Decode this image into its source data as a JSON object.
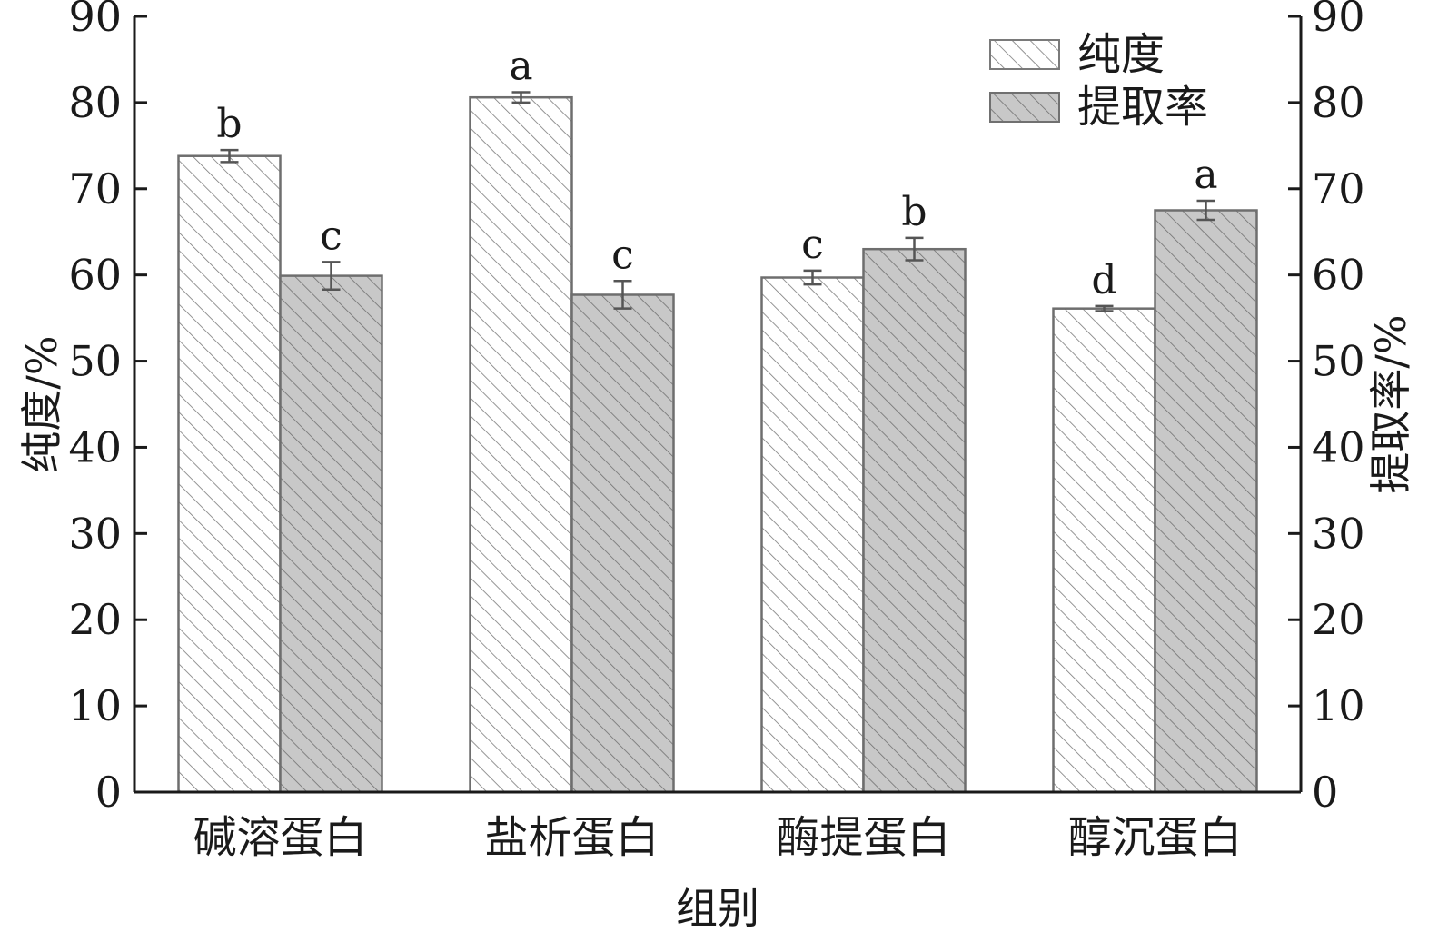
{
  "chart_data": {
    "type": "bar",
    "title": "",
    "xlabel": "组别",
    "ylabel": "纯度/%",
    "y2label": "提取率/%",
    "ylim": [
      0,
      90
    ],
    "y2lim": [
      0,
      90
    ],
    "yticks": [
      0,
      10,
      20,
      30,
      40,
      50,
      60,
      70,
      80,
      90
    ],
    "categories": [
      "碱溶蛋白",
      "盐析蛋白",
      "酶提蛋白",
      "醇沉蛋白"
    ],
    "series": [
      {
        "name": "纯度",
        "axis": "left",
        "values": [
          73.8,
          80.6,
          59.7,
          56.1
        ],
        "errors": [
          0.7,
          0.6,
          0.8,
          0.3
        ],
        "labels": [
          "b",
          "a",
          "c",
          "d"
        ],
        "fill": "#ffffff",
        "hatch": "#7a7a7a"
      },
      {
        "name": "提取率",
        "axis": "right",
        "values": [
          59.9,
          57.7,
          63.0,
          67.5
        ],
        "errors": [
          1.6,
          1.6,
          1.3,
          1.1
        ],
        "labels": [
          "c",
          "c",
          "b",
          "a"
        ],
        "fill": "#c8c8c8",
        "hatch": "#707070"
      }
    ],
    "legend_position": "top-right",
    "grid": false
  }
}
